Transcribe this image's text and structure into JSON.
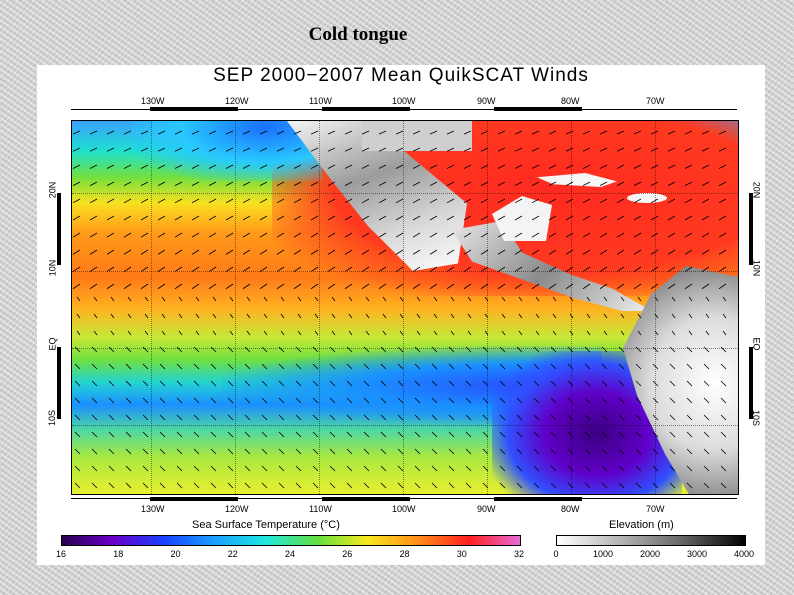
{
  "slide_title": "Cold tongue",
  "figure": {
    "title": "SEP 2000−2007 Mean QuikSCAT Winds",
    "lon_ticks": [
      "130W",
      "120W",
      "110W",
      "100W",
      "90W",
      "80W",
      "70W"
    ],
    "lat_ticks": [
      "20N",
      "10N",
      "EQ",
      "10S"
    ],
    "sst_colorbar": {
      "title": "Sea Surface Temperature (°C)",
      "labels": [
        "16",
        "18",
        "20",
        "22",
        "24",
        "26",
        "28",
        "30",
        "32"
      ],
      "colors": [
        "#2a0050",
        "#6a00c8",
        "#1a40ff",
        "#1aa0ff",
        "#20e8e0",
        "#60e040",
        "#f8e820",
        "#ff8c18",
        "#ff2020",
        "#e86ad8"
      ]
    },
    "elevation_colorbar": {
      "title": "Elevation (m)",
      "labels": [
        "0",
        "1000",
        "2000",
        "3000",
        "4000"
      ]
    }
  }
}
